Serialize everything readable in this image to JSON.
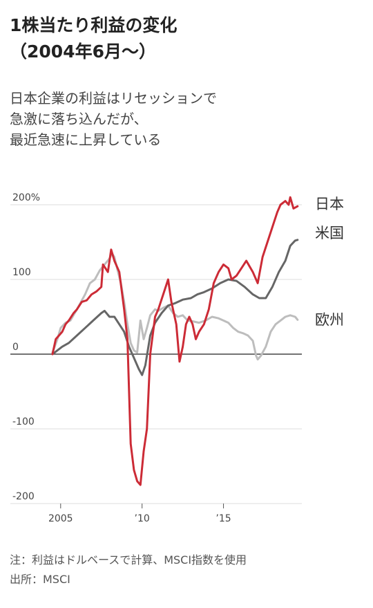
{
  "header": {
    "title_line1": "1株当たり利益の変化",
    "title_line2": "（2004年6月～）",
    "subtitle_lines": [
      "日本企業の利益はリセッションで",
      "急激に落ち込んだが、",
      "最近急速に上昇している"
    ]
  },
  "footer": {
    "note": "注：利益はドルベースで計算、MSCI指数を使用",
    "source": "出所：MSCI"
  },
  "colors": {
    "japan": "#cc2b36",
    "us": "#666666",
    "europe": "#bdbdbd",
    "grid": "#dddddd",
    "zero": "#444444"
  },
  "chart_data": {
    "type": "line",
    "title": "1株当たり利益の変化",
    "ylim": [
      -200,
      200
    ],
    "xlim": [
      2004.5,
      2019.6
    ],
    "y_ticks": [
      200,
      100,
      0,
      -100,
      -200
    ],
    "y_tick_labels": [
      "200%",
      "100",
      "0",
      "-100",
      "-200"
    ],
    "x_ticks": [
      2005,
      2010,
      2015
    ],
    "x_tick_labels": [
      "2005",
      "’10",
      "’15"
    ],
    "series": [
      {
        "name": "欧州",
        "key": "europe",
        "points": [
          [
            2004.5,
            2
          ],
          [
            2004.8,
            20
          ],
          [
            2005.0,
            35
          ],
          [
            2005.3,
            42
          ],
          [
            2005.6,
            45
          ],
          [
            2006.0,
            60
          ],
          [
            2006.5,
            80
          ],
          [
            2006.8,
            95
          ],
          [
            2007.1,
            100
          ],
          [
            2007.4,
            112
          ],
          [
            2007.7,
            120
          ],
          [
            2008.0,
            128
          ],
          [
            2008.15,
            135
          ],
          [
            2008.3,
            130
          ],
          [
            2008.5,
            112
          ],
          [
            2008.7,
            95
          ],
          [
            2008.9,
            70
          ],
          [
            2009.1,
            40
          ],
          [
            2009.3,
            15
          ],
          [
            2009.5,
            5
          ],
          [
            2009.7,
            2
          ],
          [
            2009.9,
            45
          ],
          [
            2010.1,
            20
          ],
          [
            2010.3,
            35
          ],
          [
            2010.5,
            52
          ],
          [
            2010.8,
            60
          ],
          [
            2011.0,
            58
          ],
          [
            2011.3,
            62
          ],
          [
            2011.6,
            65
          ],
          [
            2011.9,
            55
          ],
          [
            2012.2,
            50
          ],
          [
            2012.5,
            52
          ],
          [
            2012.8,
            45
          ],
          [
            2013.1,
            44
          ],
          [
            2013.5,
            42
          ],
          [
            2013.9,
            45
          ],
          [
            2014.3,
            50
          ],
          [
            2014.7,
            48
          ],
          [
            2015.0,
            45
          ],
          [
            2015.3,
            42
          ],
          [
            2015.6,
            35
          ],
          [
            2015.9,
            30
          ],
          [
            2016.2,
            28
          ],
          [
            2016.5,
            25
          ],
          [
            2016.8,
            18
          ],
          [
            2017.0,
            -2
          ],
          [
            2017.1,
            -7
          ],
          [
            2017.3,
            -2
          ],
          [
            2017.6,
            10
          ],
          [
            2017.9,
            30
          ],
          [
            2018.2,
            40
          ],
          [
            2018.5,
            45
          ],
          [
            2018.8,
            50
          ],
          [
            2019.1,
            52
          ],
          [
            2019.4,
            50
          ],
          [
            2019.55,
            46
          ]
        ]
      },
      {
        "name": "米国",
        "key": "us",
        "points": [
          [
            2004.5,
            0
          ],
          [
            2004.8,
            5
          ],
          [
            2005.1,
            10
          ],
          [
            2005.5,
            15
          ],
          [
            2006.0,
            25
          ],
          [
            2006.5,
            35
          ],
          [
            2007.0,
            45
          ],
          [
            2007.5,
            55
          ],
          [
            2007.7,
            58
          ],
          [
            2008.0,
            50
          ],
          [
            2008.3,
            50
          ],
          [
            2008.6,
            40
          ],
          [
            2008.9,
            30
          ],
          [
            2009.2,
            10
          ],
          [
            2009.5,
            -5
          ],
          [
            2009.8,
            -20
          ],
          [
            2010.0,
            -28
          ],
          [
            2010.2,
            -15
          ],
          [
            2010.5,
            25
          ],
          [
            2010.8,
            42
          ],
          [
            2011.2,
            55
          ],
          [
            2011.6,
            65
          ],
          [
            2012.0,
            68
          ],
          [
            2012.5,
            73
          ],
          [
            2013.0,
            75
          ],
          [
            2013.4,
            80
          ],
          [
            2013.8,
            83
          ],
          [
            2014.3,
            88
          ],
          [
            2014.8,
            95
          ],
          [
            2015.3,
            100
          ],
          [
            2015.8,
            98
          ],
          [
            2016.3,
            90
          ],
          [
            2016.8,
            80
          ],
          [
            2017.2,
            75
          ],
          [
            2017.6,
            75
          ],
          [
            2018.0,
            90
          ],
          [
            2018.4,
            110
          ],
          [
            2018.8,
            125
          ],
          [
            2019.1,
            145
          ],
          [
            2019.4,
            152
          ],
          [
            2019.55,
            153
          ]
        ]
      },
      {
        "name": "日本",
        "key": "japan",
        "points": [
          [
            2004.5,
            0
          ],
          [
            2004.7,
            20
          ],
          [
            2004.9,
            25
          ],
          [
            2005.1,
            30
          ],
          [
            2005.3,
            40
          ],
          [
            2005.5,
            45
          ],
          [
            2005.8,
            55
          ],
          [
            2006.0,
            60
          ],
          [
            2006.3,
            70
          ],
          [
            2006.6,
            72
          ],
          [
            2006.9,
            80
          ],
          [
            2007.2,
            84
          ],
          [
            2007.5,
            90
          ],
          [
            2007.6,
            120
          ],
          [
            2007.9,
            110
          ],
          [
            2008.1,
            140
          ],
          [
            2008.3,
            125
          ],
          [
            2008.6,
            110
          ],
          [
            2008.9,
            60
          ],
          [
            2009.1,
            20
          ],
          [
            2009.3,
            -120
          ],
          [
            2009.5,
            -155
          ],
          [
            2009.7,
            -170
          ],
          [
            2009.9,
            -175
          ],
          [
            2010.1,
            -130
          ],
          [
            2010.3,
            -100
          ],
          [
            2010.5,
            0
          ],
          [
            2010.8,
            50
          ],
          [
            2011.0,
            60
          ],
          [
            2011.3,
            80
          ],
          [
            2011.6,
            100
          ],
          [
            2011.8,
            70
          ],
          [
            2012.1,
            40
          ],
          [
            2012.3,
            -10
          ],
          [
            2012.5,
            10
          ],
          [
            2012.7,
            40
          ],
          [
            2012.9,
            50
          ],
          [
            2013.1,
            40
          ],
          [
            2013.3,
            20
          ],
          [
            2013.5,
            30
          ],
          [
            2013.8,
            40
          ],
          [
            2014.1,
            60
          ],
          [
            2014.4,
            95
          ],
          [
            2014.7,
            110
          ],
          [
            2015.0,
            120
          ],
          [
            2015.3,
            115
          ],
          [
            2015.5,
            100
          ],
          [
            2015.8,
            105
          ],
          [
            2016.1,
            115
          ],
          [
            2016.4,
            125
          ],
          [
            2016.8,
            110
          ],
          [
            2017.1,
            95
          ],
          [
            2017.4,
            130
          ],
          [
            2017.7,
            150
          ],
          [
            2018.0,
            170
          ],
          [
            2018.3,
            190
          ],
          [
            2018.5,
            200
          ],
          [
            2018.8,
            205
          ],
          [
            2019.0,
            200
          ],
          [
            2019.1,
            210
          ],
          [
            2019.3,
            195
          ],
          [
            2019.55,
            198
          ]
        ]
      }
    ]
  }
}
